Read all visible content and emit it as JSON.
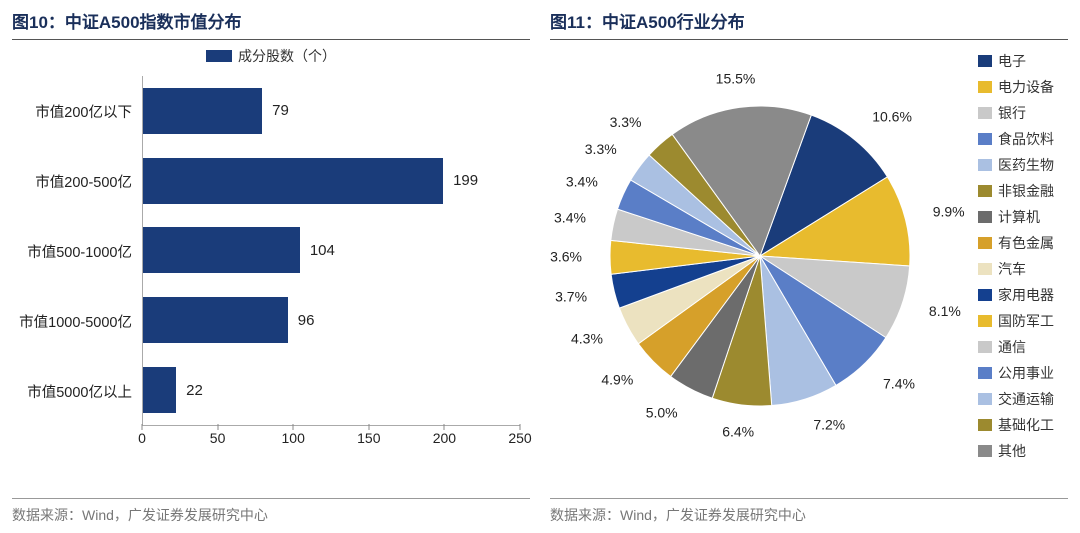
{
  "left": {
    "title": "图10：中证A500指数市值分布",
    "legend_label": "成分股数（个）",
    "source": "数据来源：Wind，广发证券发展研究中心",
    "chart": {
      "type": "bar",
      "bar_color": "#1a3c7a",
      "xlim": [
        0,
        250
      ],
      "xtick_step": 50,
      "xticks": [
        "0",
        "50",
        "100",
        "150",
        "200",
        "250"
      ],
      "grid_color": "#aaaaaa",
      "background_color": "#ffffff",
      "label_fontsize": 14,
      "categories": [
        "市值200亿以下",
        "市值200-500亿",
        "市值500-1000亿",
        "市值1000-5000亿",
        "市值5000亿以上"
      ],
      "values": [
        79,
        199,
        104,
        96,
        22
      ]
    }
  },
  "right": {
    "title": "图11：中证A500行业分布",
    "source": "数据来源：Wind，广发证券发展研究中心",
    "chart": {
      "type": "pie",
      "background_color": "#ffffff",
      "label_fontsize": 14,
      "start_angle_deg": -70,
      "slices": [
        {
          "label": "电子",
          "value": 10.6,
          "color": "#1a3c7a"
        },
        {
          "label": "电力设备",
          "value": 9.9,
          "color": "#e8bb2e"
        },
        {
          "label": "银行",
          "value": 8.1,
          "color": "#c9c9c9"
        },
        {
          "label": "食品饮料",
          "value": 7.4,
          "color": "#5a7ec7"
        },
        {
          "label": "医药生物",
          "value": 7.2,
          "color": "#aac0e2"
        },
        {
          "label": "非银金融",
          "value": 6.4,
          "color": "#9c8a2f"
        },
        {
          "label": "计算机",
          "value": 5.0,
          "color": "#6c6c6c"
        },
        {
          "label": "有色金属",
          "value": 4.9,
          "color": "#d6a02a"
        },
        {
          "label": "汽车",
          "value": 4.3,
          "color": "#ece2c0"
        },
        {
          "label": "家用电器",
          "value": 3.7,
          "color": "#14408f"
        },
        {
          "label": "国防军工",
          "value": 3.6,
          "color": "#e8bb2e"
        },
        {
          "label": "通信",
          "value": 3.4,
          "color": "#c9c9c9"
        },
        {
          "label": "公用事业",
          "value": 3.4,
          "color": "#5a7ec7"
        },
        {
          "label": "交通运输",
          "value": 3.3,
          "color": "#aac0e2"
        },
        {
          "label": "基础化工",
          "value": 3.3,
          "color": "#9c8a2f"
        },
        {
          "label": "其他",
          "value": 15.5,
          "color": "#8a8a8a"
        }
      ]
    }
  }
}
